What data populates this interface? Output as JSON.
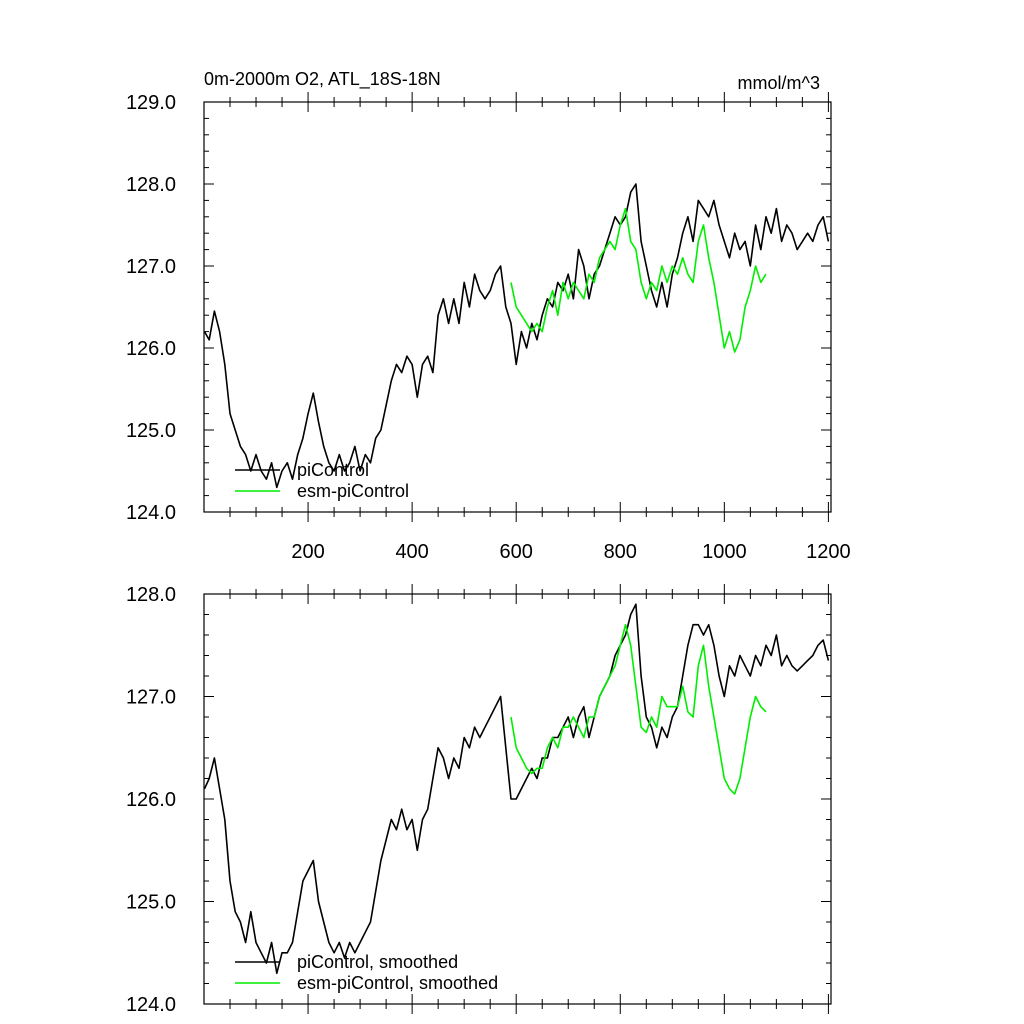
{
  "chart_data": [
    {
      "type": "line",
      "title": "0m-2000m O2, ATL_18S-18N",
      "units": "mmol/m^3",
      "xlim": [
        0,
        1205
      ],
      "ylim": [
        124.0,
        129.0
      ],
      "yticks": [
        "124.0",
        "125.0",
        "126.0",
        "127.0",
        "128.0",
        "129.0"
      ],
      "xticks": [
        "200",
        "400",
        "600",
        "800",
        "1000",
        "1200"
      ],
      "legend_position": "bottom-left",
      "series": [
        {
          "name": "piControl",
          "color": "#000000",
          "x": [
            1,
            10,
            20,
            30,
            40,
            50,
            60,
            70,
            80,
            90,
            100,
            110,
            120,
            130,
            140,
            150,
            160,
            170,
            180,
            190,
            200,
            210,
            220,
            230,
            240,
            250,
            260,
            270,
            280,
            290,
            300,
            310,
            320,
            330,
            340,
            350,
            360,
            370,
            380,
            390,
            400,
            410,
            420,
            430,
            440,
            450,
            460,
            470,
            480,
            490,
            500,
            510,
            520,
            530,
            540,
            550,
            560,
            570,
            580,
            590,
            600,
            610,
            620,
            630,
            640,
            650,
            660,
            670,
            680,
            690,
            700,
            710,
            720,
            730,
            740,
            750,
            760,
            770,
            780,
            790,
            800,
            810,
            820,
            830,
            840,
            850,
            860,
            870,
            880,
            890,
            900,
            910,
            920,
            930,
            940,
            950,
            960,
            970,
            980,
            990,
            1000,
            1010,
            1020,
            1030,
            1040,
            1050,
            1060,
            1070,
            1080,
            1090,
            1100,
            1110,
            1120,
            1130,
            1140,
            1150,
            1160,
            1170,
            1180,
            1190,
            1200
          ],
          "values": [
            126.2,
            126.1,
            126.45,
            126.2,
            125.8,
            125.2,
            125.0,
            124.8,
            124.7,
            124.5,
            124.7,
            124.5,
            124.4,
            124.6,
            124.3,
            124.5,
            124.6,
            124.4,
            124.7,
            124.9,
            125.2,
            125.45,
            125.1,
            124.8,
            124.6,
            124.5,
            124.7,
            124.5,
            124.6,
            124.8,
            124.5,
            124.7,
            124.6,
            124.9,
            125.0,
            125.3,
            125.6,
            125.8,
            125.7,
            125.9,
            125.8,
            125.4,
            125.8,
            125.9,
            125.7,
            126.4,
            126.6,
            126.3,
            126.6,
            126.3,
            126.8,
            126.5,
            126.9,
            126.7,
            126.6,
            126.7,
            126.9,
            127.0,
            126.5,
            126.3,
            125.8,
            126.2,
            126.0,
            126.3,
            126.1,
            126.4,
            126.6,
            126.5,
            126.8,
            126.7,
            126.9,
            126.6,
            127.2,
            127.0,
            126.6,
            126.9,
            127.0,
            127.2,
            127.4,
            127.6,
            127.5,
            127.6,
            127.9,
            128.0,
            127.3,
            127.0,
            126.7,
            126.5,
            126.8,
            126.5,
            126.9,
            127.1,
            127.4,
            127.6,
            127.3,
            127.8,
            127.7,
            127.6,
            127.8,
            127.5,
            127.3,
            127.1,
            127.4,
            127.2,
            127.3,
            127.0,
            127.5,
            127.2,
            127.6,
            127.4,
            127.7,
            127.3,
            127.5,
            127.4,
            127.2,
            127.3,
            127.4,
            127.3,
            127.5,
            127.6,
            127.3
          ]
        },
        {
          "name": "esm-piControl",
          "color": "#00ee00",
          "x": [
            590,
            600,
            610,
            620,
            630,
            640,
            650,
            660,
            670,
            680,
            690,
            700,
            710,
            720,
            730,
            740,
            750,
            760,
            770,
            780,
            790,
            800,
            810,
            820,
            830,
            840,
            850,
            860,
            870,
            880,
            890,
            900,
            910,
            920,
            930,
            940,
            950,
            960,
            970,
            980,
            990,
            1000,
            1010,
            1020,
            1030,
            1040,
            1050,
            1060,
            1070,
            1080
          ],
          "values": [
            126.8,
            126.5,
            126.4,
            126.3,
            126.2,
            126.3,
            126.2,
            126.5,
            126.7,
            126.4,
            126.8,
            126.6,
            126.8,
            126.7,
            126.6,
            126.9,
            126.8,
            127.1,
            127.2,
            127.3,
            127.2,
            127.5,
            127.7,
            127.3,
            127.2,
            126.8,
            126.6,
            126.8,
            126.7,
            127.0,
            126.8,
            127.0,
            126.9,
            127.1,
            126.9,
            126.8,
            127.3,
            127.5,
            127.1,
            126.8,
            126.4,
            126.0,
            126.2,
            125.95,
            126.1,
            126.5,
            126.7,
            127.0,
            126.8,
            126.9
          ]
        }
      ]
    },
    {
      "type": "line",
      "xlim": [
        0,
        1205
      ],
      "ylim": [
        124.0,
        128.0
      ],
      "yticks": [
        "124.0",
        "125.0",
        "126.0",
        "127.0",
        "128.0"
      ],
      "legend_position": "bottom-left",
      "series": [
        {
          "name": "piControl, smoothed",
          "color": "#000000",
          "x": [
            1,
            10,
            20,
            30,
            40,
            50,
            60,
            70,
            80,
            90,
            100,
            110,
            120,
            130,
            140,
            150,
            160,
            170,
            180,
            190,
            200,
            210,
            220,
            230,
            240,
            250,
            260,
            270,
            280,
            290,
            300,
            310,
            320,
            330,
            340,
            350,
            360,
            370,
            380,
            390,
            400,
            410,
            420,
            430,
            440,
            450,
            460,
            470,
            480,
            490,
            500,
            510,
            520,
            530,
            540,
            550,
            560,
            570,
            580,
            590,
            600,
            610,
            620,
            630,
            640,
            650,
            660,
            670,
            680,
            690,
            700,
            710,
            720,
            730,
            740,
            750,
            760,
            770,
            780,
            790,
            800,
            810,
            820,
            830,
            840,
            850,
            860,
            870,
            880,
            890,
            900,
            910,
            920,
            930,
            940,
            950,
            960,
            970,
            980,
            990,
            1000,
            1010,
            1020,
            1030,
            1040,
            1050,
            1060,
            1070,
            1080,
            1090,
            1100,
            1110,
            1120,
            1130,
            1140,
            1150,
            1160,
            1170,
            1180,
            1190,
            1200
          ],
          "values": [
            126.1,
            126.2,
            126.4,
            126.1,
            125.8,
            125.2,
            124.9,
            124.8,
            124.6,
            124.9,
            124.6,
            124.5,
            124.4,
            124.6,
            124.3,
            124.5,
            124.5,
            124.6,
            124.9,
            125.2,
            125.3,
            125.4,
            125.0,
            124.8,
            124.6,
            124.5,
            124.6,
            124.45,
            124.6,
            124.5,
            124.6,
            124.7,
            124.8,
            125.1,
            125.4,
            125.6,
            125.8,
            125.7,
            125.9,
            125.7,
            125.8,
            125.5,
            125.8,
            125.9,
            126.2,
            126.5,
            126.4,
            126.2,
            126.4,
            126.3,
            126.6,
            126.5,
            126.7,
            126.6,
            126.7,
            126.8,
            126.9,
            127.0,
            126.5,
            126.0,
            126.0,
            126.1,
            126.2,
            126.3,
            126.2,
            126.4,
            126.4,
            126.6,
            126.6,
            126.7,
            126.8,
            126.6,
            126.8,
            126.9,
            126.6,
            126.8,
            127.0,
            127.1,
            127.2,
            127.4,
            127.5,
            127.6,
            127.8,
            127.9,
            127.2,
            126.8,
            126.7,
            126.5,
            126.7,
            126.6,
            126.8,
            126.9,
            127.2,
            127.5,
            127.7,
            127.7,
            127.6,
            127.7,
            127.5,
            127.2,
            127.0,
            127.3,
            127.2,
            127.4,
            127.3,
            127.2,
            127.4,
            127.3,
            127.5,
            127.4,
            127.6,
            127.3,
            127.4,
            127.3,
            127.25,
            127.3,
            127.35,
            127.4,
            127.5,
            127.55,
            127.35
          ]
        },
        {
          "name": "esm-piControl, smoothed",
          "color": "#00ee00",
          "x": [
            590,
            600,
            610,
            620,
            630,
            640,
            650,
            660,
            670,
            680,
            690,
            700,
            710,
            720,
            730,
            740,
            750,
            760,
            770,
            780,
            790,
            800,
            810,
            820,
            830,
            840,
            850,
            860,
            870,
            880,
            890,
            900,
            910,
            920,
            930,
            940,
            950,
            960,
            970,
            980,
            990,
            1000,
            1010,
            1020,
            1030,
            1040,
            1050,
            1060,
            1070,
            1080
          ],
          "values": [
            126.8,
            126.5,
            126.4,
            126.3,
            126.25,
            126.3,
            126.3,
            126.5,
            126.6,
            126.5,
            126.7,
            126.7,
            126.8,
            126.7,
            126.6,
            126.8,
            126.8,
            127.0,
            127.1,
            127.2,
            127.3,
            127.5,
            127.7,
            127.5,
            127.1,
            126.7,
            126.65,
            126.8,
            126.7,
            127.0,
            126.9,
            126.9,
            126.9,
            127.1,
            126.85,
            126.8,
            127.3,
            127.5,
            127.1,
            126.8,
            126.5,
            126.2,
            126.1,
            126.05,
            126.2,
            126.5,
            126.8,
            127.0,
            126.9,
            126.85
          ]
        }
      ]
    }
  ]
}
